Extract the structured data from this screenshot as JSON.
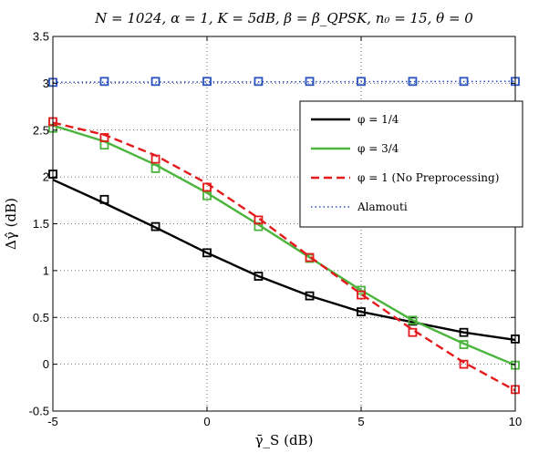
{
  "chart_data": {
    "type": "line",
    "title": "N = 1024, α = 1, K = 5dB, β = β_QPSK, n₀ = 15, θ = 0",
    "xlabel": "γ̄_S (dB)",
    "ylabel": "Δγ̂ (dB)",
    "xlim": [
      -5,
      10
    ],
    "ylim": [
      -0.5,
      3.5
    ],
    "grid": true,
    "legend_position": "top-right",
    "x_ticks": [
      "-5",
      "0",
      "5",
      "10"
    ],
    "y_ticks": [
      "-0.5",
      "0",
      "0.5",
      "1",
      "1.5",
      "2",
      "2.5",
      "3",
      "3.5"
    ],
    "series": [
      {
        "name": "φ = 1/4",
        "color": "#000000",
        "line_style": "solid",
        "curve_x": [
          -5,
          -3.33,
          -1.67,
          0,
          1.67,
          3.33,
          5,
          6.67,
          8.33,
          10
        ],
        "curve_y": [
          1.97,
          1.72,
          1.46,
          1.19,
          0.94,
          0.73,
          0.56,
          0.45,
          0.34,
          0.26
        ],
        "marker_x": [
          -5,
          -3.33,
          -1.67,
          0,
          1.67,
          3.33,
          5,
          6.67,
          8.33,
          10
        ],
        "marker_y": [
          2.03,
          1.76,
          1.47,
          1.19,
          0.94,
          0.73,
          0.56,
          0.46,
          0.34,
          0.27
        ]
      },
      {
        "name": "φ = 3/4",
        "color": "#4ab43c",
        "line_style": "solid",
        "curve_x": [
          -5,
          -3.33,
          -1.67,
          0,
          1.67,
          3.33,
          5,
          6.67,
          8.33,
          10
        ],
        "curve_y": [
          2.55,
          2.38,
          2.13,
          1.83,
          1.49,
          1.14,
          0.79,
          0.47,
          0.22,
          -0.01
        ],
        "marker_x": [
          -5,
          -3.33,
          -1.67,
          0,
          1.67,
          3.33,
          5,
          6.67,
          8.33,
          10
        ],
        "marker_y": [
          2.52,
          2.34,
          2.09,
          1.8,
          1.47,
          1.13,
          0.79,
          0.47,
          0.21,
          -0.01
        ]
      },
      {
        "name": "φ = 1 (No Preprocessing)",
        "color": "#e41a1c",
        "line_style": "dashed",
        "curve_x": [
          -5,
          -3.33,
          -1.67,
          0,
          1.67,
          3.33,
          5,
          6.67,
          8.33,
          10
        ],
        "curve_y": [
          2.58,
          2.45,
          2.23,
          1.93,
          1.56,
          1.15,
          0.75,
          0.37,
          0.02,
          -0.28
        ],
        "marker_x": [
          -5,
          -3.33,
          -1.67,
          0,
          1.67,
          3.33,
          5,
          6.67,
          8.33,
          10
        ],
        "marker_y": [
          2.59,
          2.42,
          2.19,
          1.89,
          1.54,
          1.14,
          0.74,
          0.34,
          0.0,
          -0.27
        ]
      },
      {
        "name": "Alamouti",
        "color": "#2a52be",
        "line_style": "dotted",
        "curve_x": [
          -5,
          10
        ],
        "curve_y": [
          3.01,
          3.02
        ],
        "marker_x": [
          -5,
          -3.33,
          -1.67,
          0,
          1.67,
          3.33,
          5,
          6.67,
          8.33,
          10
        ],
        "marker_y": [
          3.01,
          3.02,
          3.02,
          3.02,
          3.02,
          3.02,
          3.02,
          3.02,
          3.02,
          3.02
        ]
      }
    ]
  }
}
